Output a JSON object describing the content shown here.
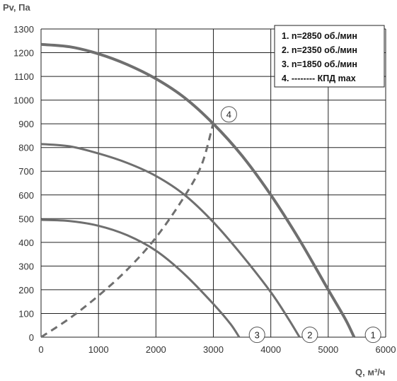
{
  "chart_data": {
    "type": "line",
    "ylabel": "Pv, Па",
    "xlabel": "Q, м³/ч",
    "xlim": [
      0,
      6000
    ],
    "ylim": [
      0,
      1300
    ],
    "x_ticks": [
      "0",
      "1000",
      "2000",
      "3000",
      "4000",
      "5000",
      "6000"
    ],
    "y_ticks": [
      "0",
      "100",
      "200",
      "300",
      "400",
      "500",
      "600",
      "700",
      "800",
      "900",
      "1000",
      "1100",
      "1200",
      "1300"
    ],
    "grid": true,
    "legend": {
      "placement": "top-right",
      "entries": [
        "1. n=2850 об./мин",
        "2. n=2350 об./мин",
        "3. n=1850 об./мин",
        "4. -------- КПД max"
      ]
    },
    "series": [
      {
        "marker": "1",
        "style": "solid",
        "x": [
          0,
          500,
          1000,
          1500,
          2000,
          2500,
          3000,
          3500,
          4000,
          4500,
          5000,
          5300,
          5450
        ],
        "y": [
          1235,
          1225,
          1195,
          1150,
          1090,
          1010,
          900,
          765,
          600,
          410,
          200,
          75,
          0
        ]
      },
      {
        "marker": "2",
        "style": "solid",
        "x": [
          0,
          500,
          1000,
          1500,
          2000,
          2500,
          3000,
          3500,
          4000,
          4300,
          4500
        ],
        "y": [
          815,
          805,
          775,
          735,
          680,
          600,
          485,
          345,
          190,
          80,
          0
        ]
      },
      {
        "marker": "3",
        "style": "solid",
        "x": [
          0,
          500,
          1000,
          1500,
          2000,
          2500,
          3000,
          3300,
          3450
        ],
        "y": [
          495,
          490,
          470,
          430,
          365,
          265,
          140,
          55,
          0
        ]
      },
      {
        "marker": "4",
        "style": "dashed",
        "x": [
          0,
          500,
          1000,
          1500,
          2000,
          2500,
          2800,
          3000
        ],
        "y": [
          0,
          80,
          175,
          285,
          420,
          595,
          730,
          905
        ]
      }
    ],
    "colors": {
      "curve": "#6f6f6f",
      "grid": "#222222",
      "axis": "#222222"
    }
  }
}
